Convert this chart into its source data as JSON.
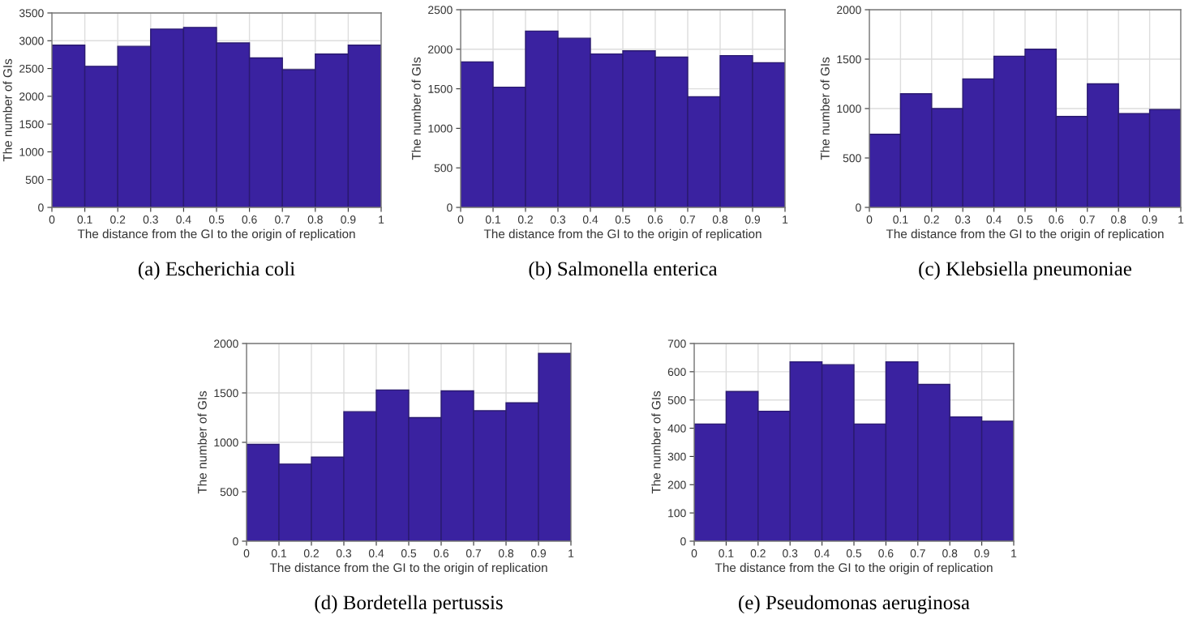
{
  "chart_data": [
    {
      "type": "histogram",
      "title": "(a) Escherichia coli",
      "xlabel": "The distance from the GI to the origin of replication",
      "ylabel": "The number of GIs",
      "bins": [
        0,
        0.1,
        0.2,
        0.3,
        0.4,
        0.5,
        0.6,
        0.7,
        0.8,
        0.9,
        1
      ],
      "values": [
        2920,
        2540,
        2900,
        3210,
        3240,
        2960,
        2690,
        2480,
        2760,
        2920
      ],
      "color": "#3a22a0",
      "xlim": [
        0,
        1
      ],
      "xticks": [
        0,
        0.1,
        0.2,
        0.3,
        0.4,
        0.5,
        0.6,
        0.7,
        0.8,
        0.9,
        1
      ],
      "ylim": [
        0,
        3500
      ],
      "yticks": [
        0,
        500,
        1000,
        1500,
        2000,
        2500,
        3000,
        3500
      ],
      "grid": true
    },
    {
      "type": "histogram",
      "title": "(b) Salmonella enterica",
      "xlabel": "The distance from the GI to the origin of replication",
      "ylabel": "The number of GIs",
      "bins": [
        0,
        0.1,
        0.2,
        0.3,
        0.4,
        0.5,
        0.6,
        0.7,
        0.8,
        0.9,
        1
      ],
      "values": [
        1840,
        1520,
        2230,
        2140,
        1940,
        1980,
        1900,
        1400,
        1920,
        1830
      ],
      "color": "#3a22a0",
      "xlim": [
        0,
        1
      ],
      "xticks": [
        0,
        0.1,
        0.2,
        0.3,
        0.4,
        0.5,
        0.6,
        0.7,
        0.8,
        0.9,
        1
      ],
      "ylim": [
        0,
        2500
      ],
      "yticks": [
        0,
        500,
        1000,
        1500,
        2000,
        2500
      ],
      "grid": true
    },
    {
      "type": "histogram",
      "title": "(c) Klebsiella pneumoniae",
      "xlabel": "The distance from the GI to the origin of replication",
      "ylabel": "The number of GIs",
      "bins": [
        0,
        0.1,
        0.2,
        0.3,
        0.4,
        0.5,
        0.6,
        0.7,
        0.8,
        0.9,
        1
      ],
      "values": [
        740,
        1150,
        1000,
        1300,
        1530,
        1600,
        920,
        1250,
        950,
        990
      ],
      "color": "#3a22a0",
      "xlim": [
        0,
        1
      ],
      "xticks": [
        0,
        0.1,
        0.2,
        0.3,
        0.4,
        0.5,
        0.6,
        0.7,
        0.8,
        0.9,
        1
      ],
      "ylim": [
        0,
        2000
      ],
      "yticks": [
        0,
        500,
        1000,
        1500,
        2000
      ],
      "grid": true
    },
    {
      "type": "histogram",
      "title": "(d) Bordetella pertussis",
      "xlabel": "The distance from the GI to the origin of replication",
      "ylabel": "The number of GIs",
      "bins": [
        0,
        0.1,
        0.2,
        0.3,
        0.4,
        0.5,
        0.6,
        0.7,
        0.8,
        0.9,
        1
      ],
      "values": [
        980,
        780,
        850,
        1310,
        1530,
        1250,
        1520,
        1320,
        1400,
        1900
      ],
      "color": "#3a22a0",
      "xlim": [
        0,
        1
      ],
      "xticks": [
        0,
        0.1,
        0.2,
        0.3,
        0.4,
        0.5,
        0.6,
        0.7,
        0.8,
        0.9,
        1
      ],
      "ylim": [
        0,
        2000
      ],
      "yticks": [
        0,
        500,
        1000,
        1500,
        2000
      ],
      "grid": true
    },
    {
      "type": "histogram",
      "title": "(e) Pseudomonas aeruginosa",
      "xlabel": "The distance from the GI to the origin of replication",
      "ylabel": "The number of GIs",
      "bins": [
        0,
        0.1,
        0.2,
        0.3,
        0.4,
        0.5,
        0.6,
        0.7,
        0.8,
        0.9,
        1
      ],
      "values": [
        415,
        530,
        460,
        635,
        625,
        415,
        635,
        555,
        440,
        425
      ],
      "color": "#3a22a0",
      "xlim": [
        0,
        1
      ],
      "xticks": [
        0,
        0.1,
        0.2,
        0.3,
        0.4,
        0.5,
        0.6,
        0.7,
        0.8,
        0.9,
        1
      ],
      "ylim": [
        0,
        700
      ],
      "yticks": [
        0,
        100,
        200,
        300,
        400,
        500,
        600,
        700
      ],
      "grid": true
    }
  ]
}
